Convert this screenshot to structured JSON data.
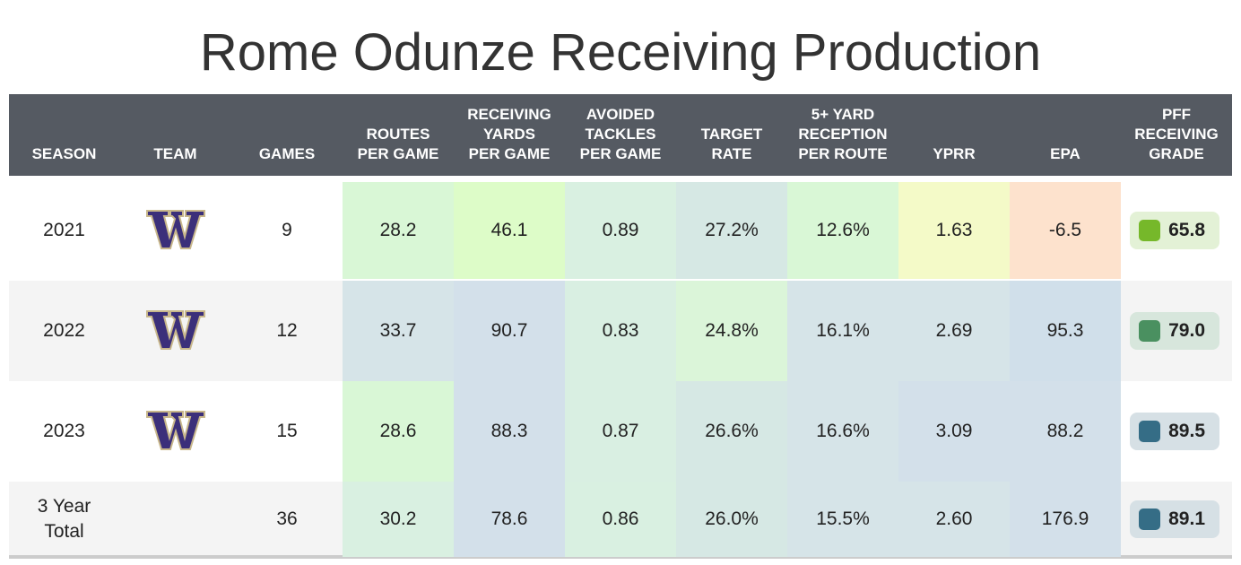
{
  "header": {
    "title": "Rome Odunze Receiving Production"
  },
  "table": {
    "headers": [
      [
        "SEASON"
      ],
      [
        "TEAM"
      ],
      [
        "GAMES"
      ],
      [
        "ROUTES",
        "PER GAME"
      ],
      [
        "RECEIVING",
        "YARDS",
        "PER GAME"
      ],
      [
        "AVOIDED",
        "TACKLES",
        "PER GAME"
      ],
      [
        "TARGET",
        "RATE"
      ],
      [
        "5+ YARD",
        "RECEPTION",
        "PER ROUTE"
      ],
      [
        "YPRR"
      ],
      [
        "EPA"
      ],
      [
        "PFF",
        "RECEIVING",
        "GRADE"
      ]
    ],
    "rows": [
      {
        "season": [
          "2021"
        ],
        "logo": true,
        "games": "9",
        "stats": [
          "28.2",
          "46.1",
          "0.89",
          "27.2%",
          "12.6%",
          "1.63",
          "-6.5"
        ],
        "grade": "65.8",
        "stat_colors": [
          "#d9f7d6",
          "#ddfcc8",
          "#d9f0e1",
          "#d6e8e4",
          "#d9f7d6",
          "#f4fac8",
          "#fde2cd"
        ],
        "grade_color": "#76b82a",
        "grade_bg": "#e3f1d6"
      },
      {
        "season": [
          "2022"
        ],
        "logo": true,
        "games": "12",
        "stats": [
          "33.7",
          "90.7",
          "0.83",
          "24.8%",
          "16.1%",
          "2.69",
          "95.3"
        ],
        "grade": "79.0",
        "stat_colors": [
          "#d6e4e8",
          "#d3e0ea",
          "#d9efe2",
          "#dbf5d9",
          "#d6e4e8",
          "#d6e4e8",
          "#d0dfea"
        ],
        "grade_color": "#4a9060",
        "grade_bg": "#d7e6dc"
      },
      {
        "season": [
          "2023"
        ],
        "logo": true,
        "games": "15",
        "stats": [
          "28.6",
          "88.3",
          "0.87",
          "26.6%",
          "16.6%",
          "3.09",
          "88.2"
        ],
        "grade": "89.5",
        "stat_colors": [
          "#d9f7d6",
          "#d3e0ea",
          "#d9efe2",
          "#d6e8e4",
          "#d6e4e8",
          "#d3e0ea",
          "#d3e0ea"
        ],
        "grade_color": "#356d86",
        "grade_bg": "#d6e0e5"
      },
      {
        "season": [
          "3 Year",
          "Total"
        ],
        "logo": false,
        "games": "36",
        "stats": [
          "30.2",
          "78.6",
          "0.86",
          "26.0%",
          "15.5%",
          "2.60",
          "176.9"
        ],
        "grade": "89.1",
        "stat_colors": [
          "#d9f0e1",
          "#d3e0ea",
          "#d9f0e1",
          "#d6e8e4",
          "#d6e4e8",
          "#d6e4e8",
          "#d3e0ea"
        ],
        "grade_color": "#356d86",
        "grade_bg": "#d6e0e5"
      }
    ]
  }
}
